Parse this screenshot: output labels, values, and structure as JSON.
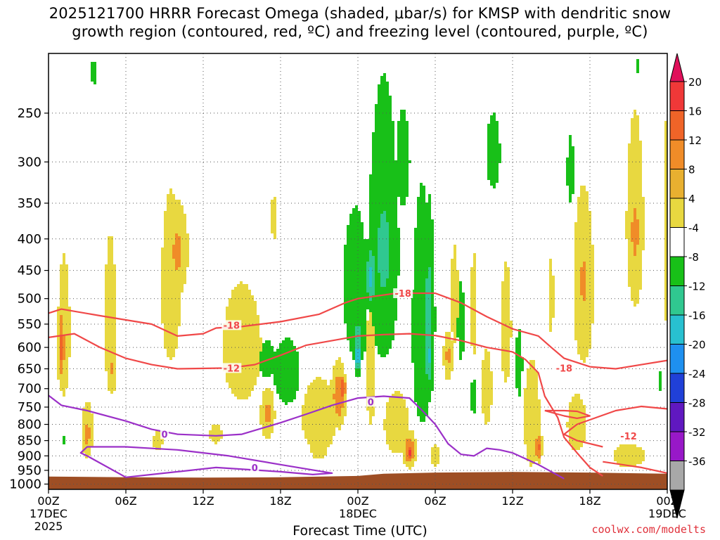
{
  "title_line1": "2025121700 HRRR Forecast Omega (shaded, μbar/s) for KMSP with dendritic snow",
  "title_line2": "growth region (contoured, red, ºC) and freezing level (contoured, purple, ºC)",
  "credit": "coolwx.com/modelts",
  "chart_data": {
    "type": "heatmap",
    "title": "2025121700 HRRR Forecast Omega (shaded, μbar/s) for KMSP with dendritic snow growth region (contoured, red, ºC) and freezing level (contoured, purple, ºC)",
    "xlabel": "Forecast Time (UTC)",
    "ylabel": "",
    "xlim": [
      0,
      48
    ],
    "ylim": [
      1000,
      200
    ],
    "x_ticks": [
      {
        "hour": 0,
        "label": "00Z",
        "date": "17DEC",
        "year": "2025"
      },
      {
        "hour": 6,
        "label": "06Z"
      },
      {
        "hour": 12,
        "label": "12Z"
      },
      {
        "hour": 18,
        "label": "18Z"
      },
      {
        "hour": 24,
        "label": "00Z",
        "date": "18DEC"
      },
      {
        "hour": 30,
        "label": "06Z"
      },
      {
        "hour": 36,
        "label": "12Z"
      },
      {
        "hour": 42,
        "label": "18Z"
      },
      {
        "hour": 48,
        "label": "00Z",
        "date": "19DEC"
      }
    ],
    "y_ticks": [
      250,
      300,
      350,
      400,
      450,
      500,
      550,
      600,
      650,
      700,
      750,
      800,
      850,
      900,
      950,
      1000
    ],
    "grid": true,
    "colorbar": {
      "labels": [
        "20",
        "16",
        "12",
        "8",
        "4",
        "-4",
        "-8",
        "-12",
        "-16",
        "-20",
        "-24",
        "-28",
        "-32",
        "-36"
      ],
      "bands": [
        {
          "color": "#e0105a"
        },
        {
          "color": "#f03838"
        },
        {
          "color": "#f06428"
        },
        {
          "color": "#f08c28"
        },
        {
          "color": "#e8b030"
        },
        {
          "color": "#e8d840"
        },
        {
          "color": "#ffffff"
        },
        {
          "color": "#18c018"
        },
        {
          "color": "#30c890"
        },
        {
          "color": "#28c0d0"
        },
        {
          "color": "#1e90f0"
        },
        {
          "color": "#2040d8"
        },
        {
          "color": "#6018c0"
        },
        {
          "color": "#9818c8"
        },
        {
          "color": "#a8a8a8"
        },
        {
          "color": "#000000"
        }
      ]
    },
    "omega_blobs": [
      {
        "t": 1.2,
        "p": 570,
        "rx": 0.7,
        "rp": 220,
        "v": 6
      },
      {
        "t": 1.0,
        "p": 600,
        "rx": 0.3,
        "rp": 90,
        "v": 13
      },
      {
        "t": 3.0,
        "p": 820,
        "rx": 0.6,
        "rp": 110,
        "v": 7
      },
      {
        "t": 3.0,
        "p": 830,
        "rx": 0.3,
        "rp": 45,
        "v": 12
      },
      {
        "t": 4.8,
        "p": 550,
        "rx": 0.9,
        "rp": 320,
        "v": 5
      },
      {
        "t": 5.0,
        "p": 650,
        "rx": 0.3,
        "rp": 70,
        "v": 9
      },
      {
        "t": 9.5,
        "p": 480,
        "rx": 1.5,
        "rp": 300,
        "v": 5
      },
      {
        "t": 10.0,
        "p": 420,
        "rx": 0.9,
        "rp": 80,
        "v": 9
      },
      {
        "t": 15.0,
        "p": 600,
        "rx": 3.0,
        "rp": 260,
        "v": 5
      },
      {
        "t": 17.0,
        "p": 770,
        "rx": 0.6,
        "rp": 80,
        "v": 9
      },
      {
        "t": 17.5,
        "p": 370,
        "rx": 0.5,
        "rp": 60,
        "v": 5
      },
      {
        "t": 21.0,
        "p": 780,
        "rx": 2.0,
        "rp": 160,
        "v": 6
      },
      {
        "t": 22.5,
        "p": 720,
        "rx": 0.6,
        "rp": 90,
        "v": 11
      },
      {
        "t": 22.8,
        "p": 700,
        "rx": 0.3,
        "rp": 40,
        "v": 15
      },
      {
        "t": 21.0,
        "p": 860,
        "rx": 0.8,
        "rp": 60,
        "v": 8
      },
      {
        "t": 25.0,
        "p": 650,
        "rx": 0.7,
        "rp": 300,
        "v": 5
      },
      {
        "t": 27.0,
        "p": 800,
        "rx": 1.4,
        "rp": 140,
        "v": 6
      },
      {
        "t": 28.0,
        "p": 880,
        "rx": 0.5,
        "rp": 60,
        "v": 12
      },
      {
        "t": 28.0,
        "p": 890,
        "rx": 0.25,
        "rp": 30,
        "v": 17
      },
      {
        "t": 30.0,
        "p": 900,
        "rx": 0.4,
        "rp": 50,
        "v": 7
      },
      {
        "t": 31.5,
        "p": 500,
        "rx": 0.6,
        "rp": 180,
        "v": 5
      },
      {
        "t": 31.0,
        "p": 620,
        "rx": 0.4,
        "rp": 60,
        "v": 9
      },
      {
        "t": 33.0,
        "p": 520,
        "rx": 0.5,
        "rp": 200,
        "v": 5
      },
      {
        "t": 34.0,
        "p": 700,
        "rx": 0.8,
        "rp": 200,
        "v": 5
      },
      {
        "t": 35.5,
        "p": 560,
        "rx": 0.5,
        "rp": 160,
        "v": 7
      },
      {
        "t": 37.5,
        "p": 780,
        "rx": 0.9,
        "rp": 230,
        "v": 6
      },
      {
        "t": 38.0,
        "p": 870,
        "rx": 0.3,
        "rp": 50,
        "v": 13
      },
      {
        "t": 39.0,
        "p": 500,
        "rx": 0.4,
        "rp": 140,
        "v": 5
      },
      {
        "t": 41.0,
        "p": 800,
        "rx": 1.5,
        "rp": 170,
        "v": 5
      },
      {
        "t": 41.5,
        "p": 480,
        "rx": 1.2,
        "rp": 230,
        "v": 6
      },
      {
        "t": 41.5,
        "p": 470,
        "rx": 0.6,
        "rp": 100,
        "v": 9
      },
      {
        "t": 45.0,
        "p": 900,
        "rx": 2.5,
        "rp": 80,
        "v": 5
      },
      {
        "t": 45.5,
        "p": 380,
        "rx": 1.0,
        "rp": 200,
        "v": 6
      },
      {
        "t": 45.5,
        "p": 390,
        "rx": 0.5,
        "rp": 70,
        "v": 10
      },
      {
        "t": 48.0,
        "p": 400,
        "rx": 0.5,
        "rp": 320,
        "v": 5
      },
      {
        "t": 8.5,
        "p": 850,
        "rx": 0.8,
        "rp": 60,
        "v": 5
      },
      {
        "t": 13.0,
        "p": 830,
        "rx": 1.0,
        "rp": 60,
        "v": 5
      },
      {
        "t": 1.2,
        "p": 850,
        "rx": 0.3,
        "rp": 30,
        "v": -5
      },
      {
        "t": 3.5,
        "p": 215,
        "rx": 0.3,
        "rp": 25,
        "v": -5
      },
      {
        "t": 17.0,
        "p": 630,
        "rx": 0.7,
        "rp": 50,
        "v": -8
      },
      {
        "t": 18.5,
        "p": 660,
        "rx": 1.5,
        "rp": 120,
        "v": -6
      },
      {
        "t": 23.8,
        "p": 480,
        "rx": 1.2,
        "rp": 160,
        "v": -7
      },
      {
        "t": 24.0,
        "p": 580,
        "rx": 0.6,
        "rp": 60,
        "v": -10
      },
      {
        "t": 26.0,
        "p": 420,
        "rx": 1.5,
        "rp": 260,
        "v": -7
      },
      {
        "t": 26.0,
        "p": 420,
        "rx": 0.9,
        "rp": 120,
        "v": -10
      },
      {
        "t": 25.0,
        "p": 460,
        "rx": 0.4,
        "rp": 60,
        "v": -13
      },
      {
        "t": 24.0,
        "p": 620,
        "rx": 0.25,
        "rp": 40,
        "v": -17
      },
      {
        "t": 29.0,
        "p": 560,
        "rx": 1.0,
        "rp": 300,
        "v": -7
      },
      {
        "t": 29.5,
        "p": 540,
        "rx": 0.5,
        "rp": 200,
        "v": -10
      },
      {
        "t": 29.5,
        "p": 620,
        "rx": 0.3,
        "rp": 80,
        "v": -13
      },
      {
        "t": 27.5,
        "p": 300,
        "rx": 0.8,
        "rp": 80,
        "v": -6
      },
      {
        "t": 32.0,
        "p": 550,
        "rx": 0.4,
        "rp": 120,
        "v": -6
      },
      {
        "t": 33.0,
        "p": 720,
        "rx": 0.4,
        "rp": 70,
        "v": -6
      },
      {
        "t": 34.5,
        "p": 290,
        "rx": 0.8,
        "rp": 60,
        "v": -6
      },
      {
        "t": 36.5,
        "p": 640,
        "rx": 0.4,
        "rp": 120,
        "v": -6
      },
      {
        "t": 40.5,
        "p": 310,
        "rx": 0.4,
        "rp": 60,
        "v": -6
      },
      {
        "t": 47.5,
        "p": 680,
        "rx": 0.3,
        "rp": 50,
        "v": -5
      },
      {
        "t": 45.8,
        "p": 210,
        "rx": 0.2,
        "rp": 25,
        "v": -5
      }
    ],
    "dendritic_contours": [
      {
        "label": "-18",
        "color": "#f04848",
        "points": [
          [
            0,
            528
          ],
          [
            1,
            520
          ],
          [
            4,
            533
          ],
          [
            8,
            550
          ],
          [
            10,
            575
          ],
          [
            12,
            570
          ],
          [
            13,
            558
          ],
          [
            15,
            555
          ],
          [
            18,
            545
          ],
          [
            21,
            530
          ],
          [
            23,
            508
          ],
          [
            24,
            500
          ],
          [
            27,
            490
          ],
          [
            30,
            490
          ],
          [
            32,
            508
          ],
          [
            34,
            535
          ],
          [
            36,
            560
          ],
          [
            38,
            575
          ],
          [
            39,
            600
          ],
          [
            40,
            625
          ],
          [
            42,
            645
          ],
          [
            44,
            650
          ],
          [
            46,
            640
          ],
          [
            48,
            630
          ]
        ],
        "label_at": [
          [
            14.2,
            552
          ],
          [
            27.5,
            490
          ],
          [
            40,
            648
          ]
        ]
      },
      {
        "label": "-12",
        "color": "#f04848",
        "points": [
          [
            0,
            578
          ],
          [
            2,
            570
          ],
          [
            4,
            600
          ],
          [
            6,
            625
          ],
          [
            8,
            640
          ],
          [
            10,
            650
          ],
          [
            14,
            648
          ],
          [
            16,
            640
          ],
          [
            18,
            618
          ],
          [
            20,
            595
          ],
          [
            22,
            585
          ],
          [
            24,
            575
          ],
          [
            26,
            572
          ],
          [
            28,
            570
          ],
          [
            30,
            574
          ],
          [
            32,
            585
          ],
          [
            34,
            600
          ],
          [
            36,
            610
          ],
          [
            37,
            628
          ],
          [
            38,
            660
          ],
          [
            38.5,
            720
          ],
          [
            39.5,
            780
          ],
          [
            40,
            840
          ],
          [
            41,
            890
          ],
          [
            42,
            940
          ],
          [
            43,
            970
          ]
        ],
        "label_at": [
          [
            14.2,
            648
          ]
        ]
      },
      {
        "label": "-12",
        "color": "#f04848",
        "points": [
          [
            43,
            870
          ],
          [
            41,
            850
          ],
          [
            40,
            830
          ],
          [
            41,
            800
          ],
          [
            44,
            760
          ],
          [
            46,
            748
          ],
          [
            48,
            755
          ]
        ],
        "label_at": [
          [
            45,
            835
          ]
        ]
      },
      {
        "label": "-12",
        "color": "#f04848",
        "points": [
          [
            38.5,
            760
          ],
          [
            40,
            775
          ],
          [
            41,
            782
          ],
          [
            42,
            775
          ],
          [
            41,
            762
          ],
          [
            40,
            760
          ],
          [
            38.5,
            760
          ]
        ],
        "label_at": []
      },
      {
        "label": "-12",
        "color": "#f04848",
        "points": [
          [
            43,
            920
          ],
          [
            46,
            940
          ],
          [
            48,
            960
          ]
        ],
        "label_at": []
      }
    ],
    "freezing_contours": [
      {
        "label": "0",
        "color": "#9b30c8",
        "points": [
          [
            0,
            718
          ],
          [
            1,
            745
          ],
          [
            3,
            760
          ],
          [
            6,
            790
          ],
          [
            8,
            815
          ],
          [
            10,
            830
          ],
          [
            13,
            835
          ],
          [
            15,
            830
          ],
          [
            18,
            795
          ],
          [
            20,
            770
          ],
          [
            22,
            745
          ],
          [
            24,
            725
          ],
          [
            26,
            720
          ],
          [
            28,
            725
          ],
          [
            29,
            760
          ],
          [
            30,
            800
          ],
          [
            31,
            860
          ],
          [
            32,
            895
          ],
          [
            33,
            900
          ],
          [
            34,
            875
          ],
          [
            35,
            880
          ],
          [
            36,
            890
          ],
          [
            38,
            930
          ],
          [
            40,
            980
          ]
        ],
        "label_at": [
          [
            9,
            830
          ],
          [
            25,
            735
          ]
        ]
      },
      {
        "label": "0",
        "color": "#9b30c8",
        "points": [
          [
            3,
            900
          ],
          [
            2.5,
            890
          ],
          [
            3,
            870
          ],
          [
            6,
            870
          ],
          [
            10,
            880
          ],
          [
            14,
            900
          ],
          [
            18,
            930
          ],
          [
            20,
            945
          ],
          [
            22,
            960
          ],
          [
            20.5,
            965
          ],
          [
            18,
            955
          ],
          [
            13,
            940
          ],
          [
            10,
            955
          ],
          [
            6,
            975
          ],
          [
            3,
            900
          ]
        ],
        "label_at": [
          [
            16,
            940
          ]
        ]
      }
    ],
    "terrain": {
      "color": "#9e4e24",
      "profile": [
        [
          0,
          972
        ],
        [
          6,
          975
        ],
        [
          12,
          976
        ],
        [
          18,
          975
        ],
        [
          24,
          970
        ],
        [
          26,
          962
        ],
        [
          30,
          958
        ],
        [
          36,
          956
        ],
        [
          42,
          958
        ],
        [
          48,
          962
        ]
      ]
    }
  }
}
